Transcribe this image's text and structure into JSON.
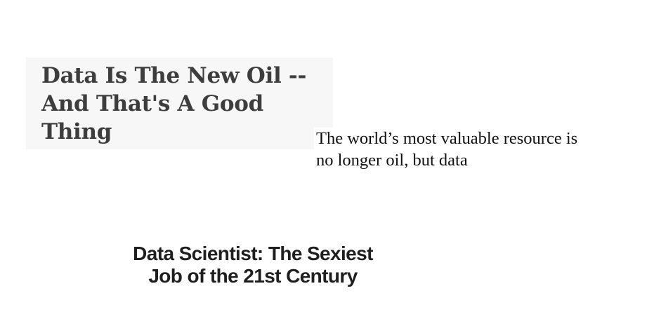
{
  "headlines": {
    "oil_good_thing": {
      "line1": "Data Is The New Oil --",
      "line2": "And That's A Good",
      "line3": "Thing"
    },
    "most_valuable_resource": {
      "line1": "The world’s most valuable resource is",
      "line2": "no longer oil, but data"
    },
    "sexiest_job": {
      "line1": "Data Scientist: The Sexiest",
      "line2": "Job of the 21st Century"
    }
  }
}
